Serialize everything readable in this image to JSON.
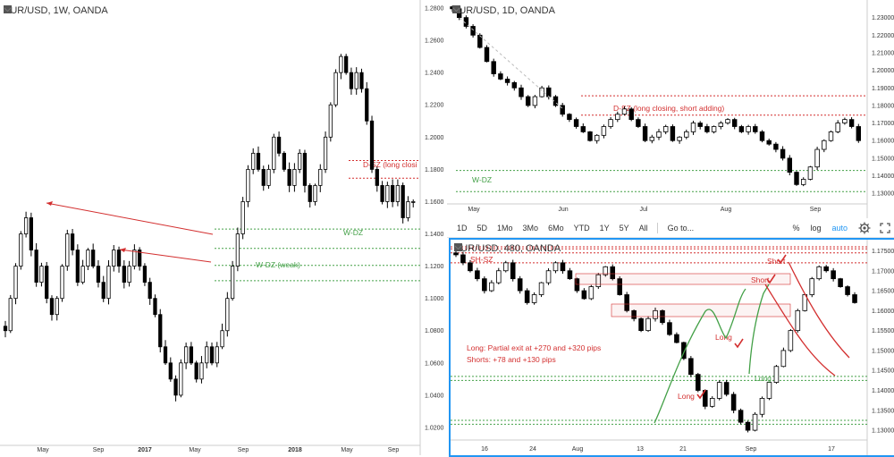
{
  "colors": {
    "red": "#d32f2f",
    "green": "#43a047",
    "up": "#ffffff",
    "down": "#000000",
    "blue": "#2196f3",
    "grid": "#e8e8e8"
  },
  "chart_data": [
    {
      "type": "candlestick",
      "title": "EUR/USD, 1W, OANDA",
      "ylim": [
        1.01,
        1.285
      ],
      "y_ticks": [
        "1.2800",
        "1.2600",
        "1.2400",
        "1.2200",
        "1.2000",
        "1.1800",
        "1.1600",
        "1.1400",
        "1.1200",
        "1.1000",
        "1.0800",
        "1.0600",
        "1.0400",
        "1.0200"
      ],
      "x_labels": [
        "May",
        "Sep",
        "2017",
        "May",
        "Sep",
        "2018",
        "May",
        "Sep"
      ],
      "closes": [
        1.08,
        1.1,
        1.12,
        1.14,
        1.15,
        1.13,
        1.11,
        1.12,
        1.1,
        1.09,
        1.1,
        1.12,
        1.14,
        1.13,
        1.11,
        1.12,
        1.13,
        1.12,
        1.11,
        1.1,
        1.12,
        1.13,
        1.12,
        1.11,
        1.12,
        1.13,
        1.12,
        1.11,
        1.1,
        1.09,
        1.07,
        1.06,
        1.05,
        1.04,
        1.06,
        1.07,
        1.06,
        1.05,
        1.06,
        1.07,
        1.06,
        1.07,
        1.08,
        1.1,
        1.12,
        1.14,
        1.16,
        1.18,
        1.19,
        1.18,
        1.17,
        1.18,
        1.2,
        1.19,
        1.18,
        1.17,
        1.18,
        1.19,
        1.17,
        1.16,
        1.17,
        1.18,
        1.2,
        1.22,
        1.24,
        1.25,
        1.24,
        1.23,
        1.24,
        1.23,
        1.21,
        1.18,
        1.17,
        1.16,
        1.17,
        1.16,
        1.17,
        1.15,
        1.16,
        1.16
      ],
      "zones": [
        {
          "label": "D-SZ (long closi",
          "low": 1.1745,
          "high": 1.1855,
          "color": "red"
        },
        {
          "label": "W-DZ",
          "low": 1.131,
          "high": 1.143,
          "color": "green"
        },
        {
          "label": "W-DZ (weak)",
          "low": 1.111,
          "high": 1.1205,
          "color": "green"
        }
      ]
    },
    {
      "type": "candlestick",
      "title": "EUR/USD, 1D, OANDA",
      "ylim": [
        1.125,
        1.24
      ],
      "y_ticks": [
        "1.24000",
        "1.23000",
        "1.22000",
        "1.21000",
        "1.20000",
        "1.19000",
        "1.18000",
        "1.17000",
        "1.16000",
        "1.15000",
        "1.14000",
        "1.13000"
      ],
      "x_labels": [
        "May",
        "Jun",
        "Jul",
        "Aug",
        "Sep"
      ],
      "closes": [
        1.235,
        1.23,
        1.225,
        1.22,
        1.213,
        1.205,
        1.198,
        1.195,
        1.193,
        1.19,
        1.185,
        1.18,
        1.185,
        1.19,
        1.185,
        1.18,
        1.175,
        1.172,
        1.168,
        1.165,
        1.16,
        1.163,
        1.168,
        1.172,
        1.175,
        1.178,
        1.172,
        1.168,
        1.16,
        1.162,
        1.165,
        1.168,
        1.16,
        1.162,
        1.165,
        1.17,
        1.168,
        1.165,
        1.168,
        1.17,
        1.172,
        1.168,
        1.165,
        1.168,
        1.165,
        1.16,
        1.158,
        1.155,
        1.15,
        1.142,
        1.135,
        1.138,
        1.145,
        1.155,
        1.16,
        1.165,
        1.17,
        1.172,
        1.168,
        1.16
      ],
      "zones": [
        {
          "label": "D-SZ (long closing, short adding)",
          "low": 1.1745,
          "high": 1.1855,
          "color": "red"
        },
        {
          "label": "W-DZ",
          "low": 1.131,
          "high": 1.143,
          "color": "green"
        }
      ]
    },
    {
      "type": "candlestick",
      "title": "EUR/USD, 480, OANDA",
      "ylim": [
        1.128,
        1.176
      ],
      "y_ticks": [
        "1.17500",
        "1.17000",
        "1.16500",
        "1.16000",
        "1.15500",
        "1.15000",
        "1.14500",
        "1.14000",
        "1.13500",
        "1.13000"
      ],
      "x_labels": [
        "16",
        "24",
        "Aug",
        "13",
        "21",
        "Sep",
        "17"
      ],
      "closes": [
        1.174,
        1.172,
        1.17,
        1.168,
        1.165,
        1.167,
        1.17,
        1.172,
        1.168,
        1.165,
        1.162,
        1.164,
        1.167,
        1.17,
        1.172,
        1.17,
        1.168,
        1.165,
        1.163,
        1.166,
        1.169,
        1.171,
        1.168,
        1.164,
        1.16,
        1.158,
        1.155,
        1.158,
        1.16,
        1.157,
        1.154,
        1.152,
        1.148,
        1.144,
        1.14,
        1.136,
        1.138,
        1.142,
        1.139,
        1.135,
        1.132,
        1.13,
        1.134,
        1.138,
        1.142,
        1.146,
        1.15,
        1.155,
        1.16,
        1.164,
        1.168,
        1.171,
        1.17,
        1.168,
        1.166,
        1.164,
        1.162
      ],
      "zones": [
        {
          "label": "SH-SZ",
          "low": 1.172,
          "high": 1.176,
          "color": "red"
        },
        {
          "label": "",
          "low": 1.1745,
          "high": 1.1755,
          "color": "red"
        },
        {
          "label": "",
          "low": 1.1425,
          "high": 1.1435,
          "color": "green"
        },
        {
          "label": "",
          "low": 1.1315,
          "high": 1.1325,
          "color": "green"
        }
      ],
      "annotations": [
        "Long: Partial exit at +270 and +320 pips",
        "Shorts: +78 and +130 pips",
        "Long",
        "Long",
        "Short",
        "Short",
        "Long"
      ]
    }
  ],
  "panels": {
    "weekly": {
      "title": "EUR/USD, 1W, OANDA"
    },
    "daily": {
      "title": "EUR/USD, 1D, OANDA"
    },
    "h4": {
      "title": "EUR/USD, 480, OANDA"
    }
  },
  "toolbar": {
    "timeframes": [
      "1D",
      "5D",
      "1Mo",
      "3Mo",
      "6Mo",
      "YTD",
      "1Y",
      "5Y",
      "All"
    ],
    "goto": "Go to...",
    "pct": "%",
    "log": "log",
    "auto": "auto"
  }
}
